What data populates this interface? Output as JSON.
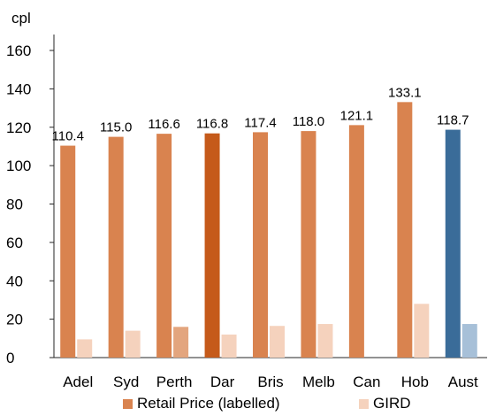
{
  "header": {
    "title_fragment": "",
    "unit_label": "cpl"
  },
  "colors": {
    "retail_default": "#d9834f",
    "retail_highlight": "#c55a1a",
    "retail_aust": "#3a6c99",
    "gird_default": "#f5d2bd",
    "gird_highlight": "#e3a57e",
    "gird_aust": "#a7c0d8",
    "axis": "#262626"
  },
  "legend": {
    "retail_label": "Retail Price (labelled)",
    "gird_label": "GIRD"
  },
  "chart_data": {
    "type": "bar",
    "categories": [
      "Adel",
      "Syd",
      "Perth",
      "Dar",
      "Bris",
      "Melb",
      "Can",
      "Hob",
      "Aust"
    ],
    "series": [
      {
        "name": "Retail Price (labelled)",
        "values": [
          110.4,
          115.0,
          116.6,
          116.8,
          117.4,
          118.0,
          121.1,
          133.1,
          118.7
        ],
        "labels": [
          "110.4",
          "115.0",
          "116.6",
          "116.8",
          "117.4",
          "118.0",
          "121.1",
          "133.1",
          "118.7"
        ]
      },
      {
        "name": "GIRD",
        "values": [
          9.5,
          14,
          16,
          12,
          16.5,
          17.5,
          0,
          28,
          17.5
        ]
      }
    ],
    "highlights": {
      "Dar": "highlight",
      "Aust": "aust",
      "Perth": "gird-highlight"
    },
    "ylabel": "cpl",
    "ylim": [
      0,
      160
    ],
    "yticks": [
      "0",
      "20",
      "40",
      "60",
      "80",
      "100",
      "120",
      "140",
      "160"
    ],
    "grid": false,
    "legend_position": "bottom"
  }
}
